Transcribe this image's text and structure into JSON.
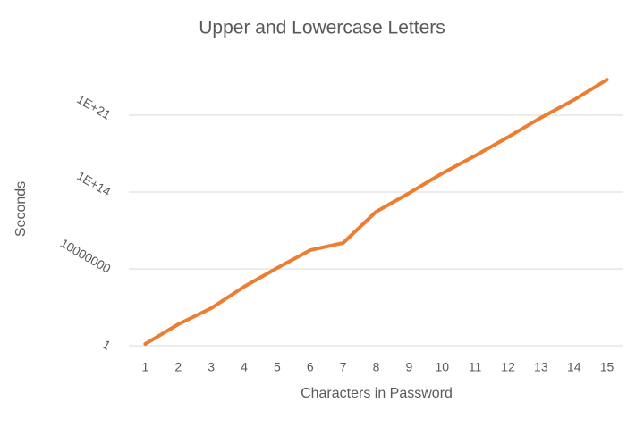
{
  "chart_data": {
    "type": "line",
    "title": "Upper and Lowercase Letters",
    "x_label": "Characters in Password",
    "y_label": "Seconds",
    "categories": [
      1,
      2,
      3,
      4,
      5,
      6,
      7,
      8,
      9,
      10,
      11,
      12,
      13,
      14,
      15
    ],
    "series": [
      {
        "name": "Seconds",
        "color": "#ED7D31",
        "values": [
          1.45,
          90,
          2600,
          240000,
          12000000,
          500000000,
          2300000000,
          1600000000000.0,
          80000000000000.0,
          5000000000000000.0,
          2e+17,
          1e+19,
          6e+20,
          2.5e+22,
          1.7e+24
        ]
      }
    ],
    "ylim": [
      1,
      1e+26
    ],
    "log_scale": true,
    "yticks": [
      1,
      10000000,
      {
        "value": 100000000000000.0,
        "label": "1E+14"
      },
      {
        "value": 1e+21,
        "label": "1E+21"
      }
    ],
    "grid": true
  }
}
